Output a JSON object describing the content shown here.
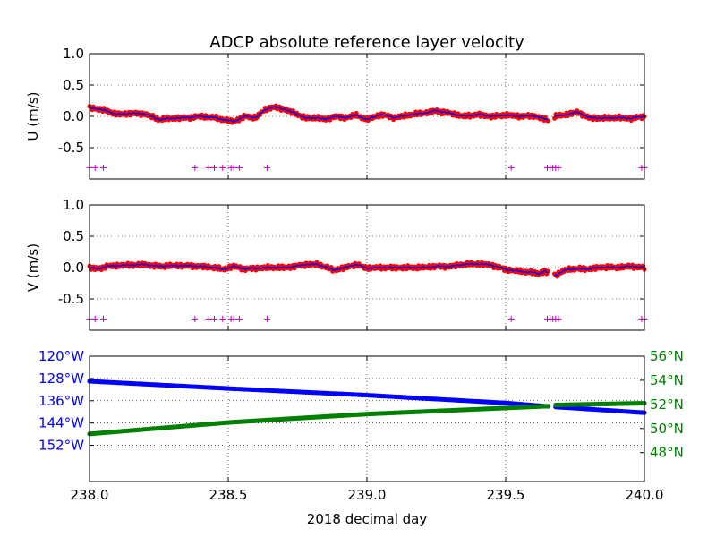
{
  "chart_data": {
    "title": "ADCP absolute reference layer velocity",
    "xlabel": "2018 decimal day",
    "xlim": [
      238.0,
      240.0
    ],
    "xticks": [
      "238.0",
      "238.5",
      "239.0",
      "239.5",
      "240.0"
    ],
    "colors": {
      "line": "#0000ff",
      "points": "#ff0000",
      "flags": "#bf00bf",
      "lon": "#0000ff",
      "lat": "#008000"
    },
    "panels": [
      {
        "type": "line",
        "ylabel": "U (m/s)",
        "ylim": [
          -1.0,
          1.0
        ],
        "yticks": [
          "1.0",
          "0.5",
          "0.0",
          "-0.5"
        ],
        "ytick_values": [
          1.0,
          0.5,
          0.0,
          -0.5
        ],
        "grid": true,
        "gaps": [
          [
            239.655,
            239.675
          ]
        ],
        "x": [
          238.0,
          238.03,
          238.06,
          238.1,
          238.15,
          238.2,
          238.25,
          238.3,
          238.35,
          238.4,
          238.45,
          238.48,
          238.52,
          238.56,
          238.6,
          238.63,
          238.66,
          238.7,
          238.74,
          238.78,
          238.82,
          238.85,
          238.88,
          238.92,
          238.96,
          239.0,
          239.05,
          239.1,
          239.15,
          239.2,
          239.25,
          239.3,
          239.35,
          239.4,
          239.45,
          239.5,
          239.55,
          239.6,
          239.64,
          239.65,
          239.68,
          239.72,
          239.76,
          239.8,
          239.85,
          239.9,
          239.95,
          240.0
        ],
        "values": [
          0.14,
          0.12,
          0.09,
          0.03,
          0.05,
          0.04,
          -0.05,
          -0.03,
          -0.02,
          0.0,
          -0.02,
          -0.05,
          -0.08,
          0.0,
          -0.02,
          0.1,
          0.15,
          0.12,
          0.05,
          -0.03,
          -0.02,
          -0.05,
          0.0,
          -0.02,
          0.02,
          -0.05,
          0.03,
          -0.02,
          0.02,
          0.05,
          0.09,
          0.05,
          0.0,
          0.03,
          0.0,
          0.02,
          0.0,
          0.01,
          -0.04,
          -0.06,
          0.0,
          0.03,
          0.07,
          -0.02,
          -0.03,
          -0.02,
          -0.03,
          0.0
        ],
        "flags_y": -0.82,
        "flags_x": [
          238.0,
          238.02,
          238.05,
          238.38,
          238.43,
          238.45,
          238.48,
          238.51,
          238.52,
          238.54,
          238.64,
          239.52,
          239.65,
          239.66,
          239.67,
          239.68,
          239.69,
          239.99,
          240.0
        ]
      },
      {
        "type": "line",
        "ylabel": "V (m/s)",
        "ylim": [
          -1.0,
          1.0
        ],
        "yticks": [
          "1.0",
          "0.5",
          "0.0",
          "-0.5"
        ],
        "ytick_values": [
          1.0,
          0.5,
          0.0,
          -0.5
        ],
        "grid": true,
        "gaps": [
          [
            239.655,
            239.675
          ]
        ],
        "x": [
          238.0,
          238.03,
          238.06,
          238.1,
          238.15,
          238.2,
          238.25,
          238.3,
          238.35,
          238.4,
          238.45,
          238.48,
          238.52,
          238.56,
          238.6,
          238.65,
          238.7,
          238.74,
          238.78,
          238.82,
          238.85,
          238.88,
          238.92,
          238.96,
          239.0,
          239.05,
          239.1,
          239.15,
          239.2,
          239.25,
          239.3,
          239.35,
          239.4,
          239.45,
          239.5,
          239.55,
          239.6,
          239.62,
          239.64,
          239.65,
          239.68,
          239.72,
          239.76,
          239.8,
          239.85,
          239.9,
          239.95,
          240.0
        ],
        "values": [
          0.0,
          -0.02,
          0.02,
          0.03,
          0.04,
          0.05,
          0.02,
          0.03,
          0.03,
          0.02,
          0.0,
          -0.03,
          0.02,
          -0.02,
          -0.01,
          0.0,
          0.0,
          0.02,
          0.05,
          0.05,
          0.01,
          -0.04,
          0.0,
          0.05,
          -0.01,
          0.0,
          0.0,
          0.0,
          0.0,
          0.02,
          0.02,
          0.05,
          0.06,
          0.04,
          -0.03,
          -0.06,
          -0.08,
          -0.1,
          -0.05,
          -0.08,
          -0.12,
          -0.03,
          -0.02,
          -0.02,
          0.01,
          0.0,
          0.02,
          0.0
        ],
        "flags_y": -0.82,
        "flags_x": [
          238.0,
          238.02,
          238.05,
          238.38,
          238.43,
          238.45,
          238.48,
          238.51,
          238.52,
          238.54,
          238.64,
          239.52,
          239.65,
          239.66,
          239.67,
          239.68,
          239.69,
          239.99,
          240.0
        ]
      },
      {
        "type": "scatter",
        "ylabel": "",
        "grid": true,
        "left_axis": {
          "ylim": [
            -165,
            -120
          ],
          "yticks": [
            "120°W",
            "128°W",
            "136°W",
            "144°W",
            "152°W"
          ],
          "ytick_values": [
            -120,
            -128,
            -136,
            -144,
            -152
          ]
        },
        "right_axis": {
          "ylim": [
            45.6,
            56.0
          ],
          "yticks": [
            "56°N",
            "54°N",
            "52°N",
            "50°N",
            "48°N"
          ],
          "ytick_values": [
            56,
            54,
            52,
            50,
            48
          ]
        },
        "gaps": [
          [
            239.655,
            239.675
          ]
        ],
        "series": [
          {
            "axis": "left",
            "x": [
              238.0,
              238.5,
              239.0,
              239.5,
              239.65,
              239.675,
              240.0
            ],
            "values": [
              -129.0,
              -131.6,
              -134.0,
              -136.8,
              -138.0,
              -138.2,
              -140.3
            ]
          },
          {
            "axis": "right",
            "x": [
              238.0,
              238.5,
              239.0,
              239.5,
              239.65,
              239.675,
              240.0
            ],
            "values": [
              49.55,
              50.5,
              51.2,
              51.7,
              51.85,
              51.95,
              52.1
            ]
          }
        ]
      }
    ]
  }
}
